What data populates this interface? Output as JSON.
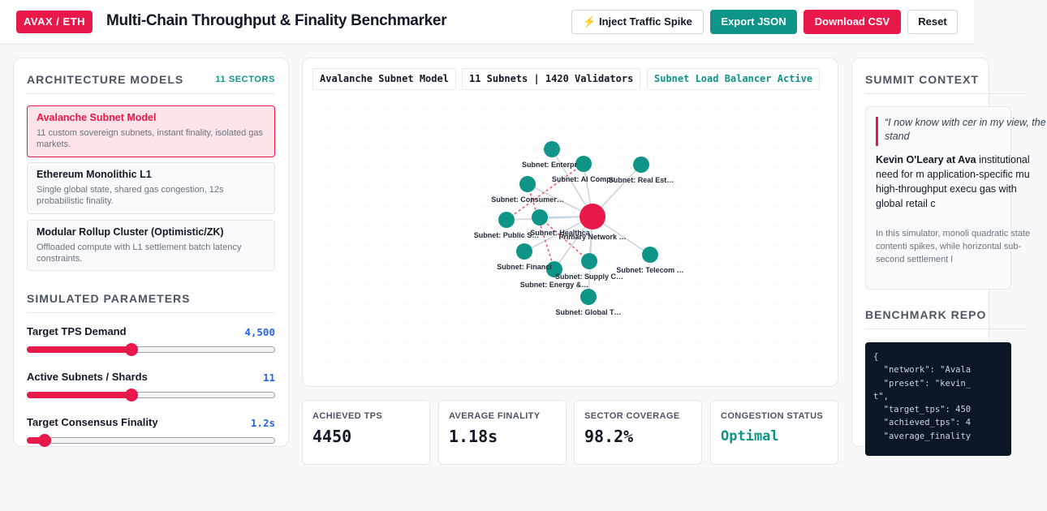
{
  "header": {
    "badge": "AVAX / ETH",
    "title": "Multi-Chain Throughput & Finality Benchmarker",
    "buttons": {
      "spike": "⚡ Inject Traffic Spike",
      "export": "Export JSON",
      "csv": "Download CSV",
      "reset": "Reset"
    }
  },
  "architecture": {
    "title": "ARCHITECTURE MODELS",
    "count": "11 SECTORS",
    "models": [
      {
        "name": "Avalanche Subnet Model",
        "desc": "11 custom sovereign subnets, instant finality, isolated gas markets.",
        "active": true
      },
      {
        "name": "Ethereum Monolithic L1",
        "desc": "Single global state, shared gas congestion, 12s probabilistic finality.",
        "active": false
      },
      {
        "name": "Modular Rollup Cluster (Optimistic/ZK)",
        "desc": "Offloaded compute with L1 settlement batch latency constraints.",
        "active": false
      }
    ]
  },
  "parameters": {
    "title": "SIMULATED PARAMETERS",
    "items": [
      {
        "label": "Target TPS Demand",
        "value": "4,500",
        "level": 0.42
      },
      {
        "label": "Active Subnets / Shards",
        "value": "11",
        "level": 0.42
      },
      {
        "label": "Target Consensus Finality",
        "value": "1.2s",
        "level": 0.07
      }
    ]
  },
  "network": {
    "chips": [
      "Avalanche Subnet Model",
      "11 Subnets | 1420 Validators",
      "Subnet Load Balancer Active"
    ],
    "hub_label": "Primary Network …",
    "subnets": [
      "Subnet: Enterpr",
      "Subnet: AI Compu",
      "Subnet: Real Est…",
      "Subnet: Consumer…",
      "Subnet: Public S…",
      "Subnet: Healthca",
      "Subnet: Financi",
      "Subnet: Energy &…",
      "Subnet: Supply C…",
      "Subnet: Telecom …",
      "Subnet: Global T…"
    ],
    "colors": {
      "hub": "#e8194a",
      "node": "#0f9488",
      "edge": "#cbd5e1",
      "alert_edge": "#f05a78"
    }
  },
  "stats": [
    {
      "label": "ACHIEVED TPS",
      "value": "4450"
    },
    {
      "label": "AVERAGE FINALITY",
      "value": "1.18s"
    },
    {
      "label": "SECTOR COVERAGE",
      "value": "98.2%"
    },
    {
      "label": "CONGESTION STATUS",
      "value": "Optimal"
    }
  ],
  "summit": {
    "title": "SUMMIT CONTEXT",
    "quote": "“I now know with cer in my view, the stand",
    "speaker": "Kevin O'Leary at Ava",
    "body": "institutional need for m application-specific mu high-throughput execu gas with global retail c",
    "note": "In this simulator, monoli quadratic state contenti spikes, while horizontal sub-second settlement l"
  },
  "report": {
    "title": "BENCHMARK REPO",
    "lines": [
      "{",
      "  \"network\": \"Avala",
      "  \"preset\": \"kevin_",
      "t\",",
      "  \"target_tps\": 450",
      "  \"achieved_tps\": 4",
      "  \"average_finality"
    ]
  }
}
